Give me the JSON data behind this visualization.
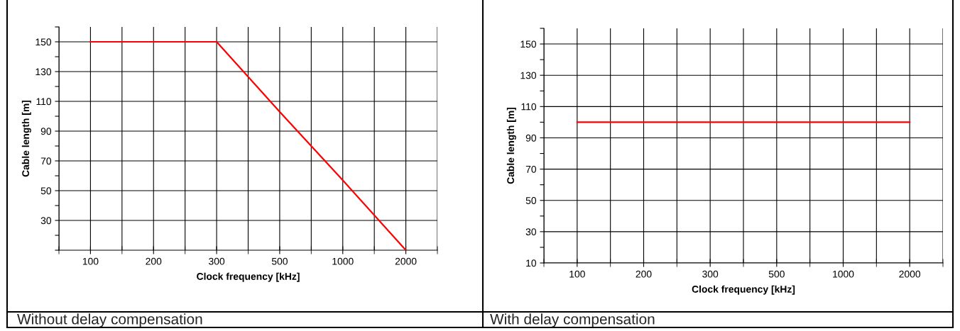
{
  "chart_data": [
    {
      "type": "line",
      "xlabel": "Clock frequency [kHz]",
      "ylabel": "Cable length [m]",
      "categories": [
        "100",
        "200",
        "300",
        "500",
        "1000",
        "2000"
      ],
      "series": [
        {
          "color": "#ff0000",
          "values": [
            150,
            150,
            150,
            103,
            57,
            10
          ]
        }
      ],
      "ylim": [
        10,
        160
      ],
      "yticks": [
        {
          "value": 10,
          "label": null
        },
        {
          "value": 20,
          "label": null
        },
        30,
        {
          "value": 40,
          "label": null
        },
        50,
        {
          "value": 60,
          "label": null
        },
        70,
        {
          "value": 80,
          "label": null
        },
        90,
        {
          "value": 100,
          "label": null
        },
        110,
        {
          "value": 120,
          "label": null
        },
        130,
        {
          "value": 140,
          "label": null
        },
        150,
        {
          "value": 160,
          "label": null
        }
      ],
      "grid": true,
      "legend": false,
      "marker": "none",
      "line_style": "solid",
      "annotations": [
        "Without delay compensation"
      ]
    },
    {
      "type": "line",
      "xlabel": "Clock frequency [kHz]",
      "ylabel": "Cable length [m]",
      "categories": [
        "100",
        "200",
        "300",
        "500",
        "1000",
        "2000"
      ],
      "series": [
        {
          "color": "#ff0000",
          "values": [
            100,
            100,
            100,
            100,
            100,
            100
          ]
        }
      ],
      "ylim": [
        10,
        160
      ],
      "yticks": [
        10,
        {
          "value": 20,
          "label": null
        },
        30,
        {
          "value": 40,
          "label": null
        },
        50,
        {
          "value": 60,
          "label": null
        },
        70,
        {
          "value": 80,
          "label": null
        },
        90,
        {
          "value": 100,
          "label": null
        },
        110,
        {
          "value": 120,
          "label": null
        },
        130,
        {
          "value": 140,
          "label": null
        },
        150,
        {
          "value": 160,
          "label": null
        }
      ],
      "grid": true,
      "legend": false,
      "marker": "none",
      "line_style": "solid",
      "annotations": [
        "With delay compensation"
      ]
    }
  ]
}
